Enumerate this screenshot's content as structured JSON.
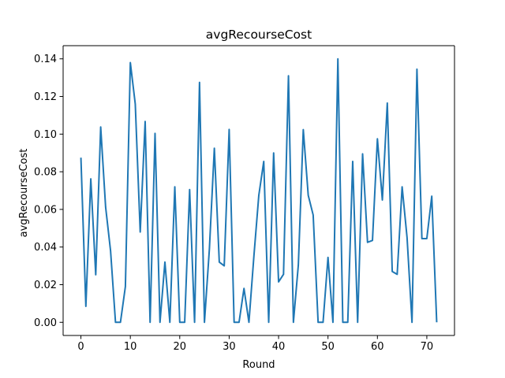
{
  "chart_data": {
    "type": "line",
    "title": "avgRecourseCost",
    "xlabel": "Round",
    "ylabel": "avgRecourseCost",
    "xlim": [
      -3.6,
      75.6
    ],
    "ylim": [
      -0.007,
      0.147
    ],
    "xticks": [
      0,
      10,
      20,
      30,
      40,
      50,
      60,
      70
    ],
    "yticks": [
      0.0,
      0.02,
      0.04,
      0.06,
      0.08,
      0.1,
      0.12,
      0.14
    ],
    "ytick_labels": [
      "0.00",
      "0.02",
      "0.04",
      "0.06",
      "0.08",
      "0.10",
      "0.12",
      "0.14"
    ],
    "grid": false,
    "line_color": "#1f77b4",
    "series": [
      {
        "x": [
          0,
          1,
          2,
          3,
          4,
          5,
          6,
          7,
          8,
          9,
          10,
          11,
          12,
          13,
          14,
          15,
          16,
          17,
          18,
          19,
          20,
          21,
          22,
          23,
          24,
          25,
          26,
          27,
          28,
          29,
          30,
          31,
          32,
          33,
          34,
          35,
          36,
          37,
          38,
          39,
          40,
          41,
          42,
          43,
          44,
          45,
          46,
          47,
          48,
          49,
          50,
          51,
          52,
          53,
          54,
          55,
          56,
          57,
          58,
          59,
          60,
          61,
          62,
          63,
          64,
          65,
          66,
          67,
          68,
          69,
          70,
          71,
          72
        ],
        "values": [
          0.0875,
          0.0085,
          0.0762,
          0.0253,
          0.1038,
          0.0612,
          0.038,
          0.0,
          0.0,
          0.019,
          0.138,
          0.116,
          0.048,
          0.1067,
          0.0,
          0.1004,
          0.0,
          0.032,
          0.0,
          0.072,
          0.0,
          0.0,
          0.0705,
          0.0,
          0.1275,
          0.0,
          0.039,
          0.0925,
          0.032,
          0.03,
          0.1025,
          0.0,
          0.0,
          0.018,
          0.0,
          0.035,
          0.0675,
          0.0855,
          0.0,
          0.09,
          0.0215,
          0.0255,
          0.131,
          0.0,
          0.0305,
          0.1024,
          0.0675,
          0.057,
          0.0,
          0.0,
          0.0345,
          0.0,
          0.14,
          0.0,
          0.0,
          0.0855,
          0.0,
          0.0895,
          0.0425,
          0.0435,
          0.0975,
          0.065,
          0.1165,
          0.027,
          0.0255,
          0.072,
          0.045,
          0.0,
          0.1345,
          0.0445,
          0.0445,
          0.067,
          0.0
        ]
      }
    ]
  }
}
